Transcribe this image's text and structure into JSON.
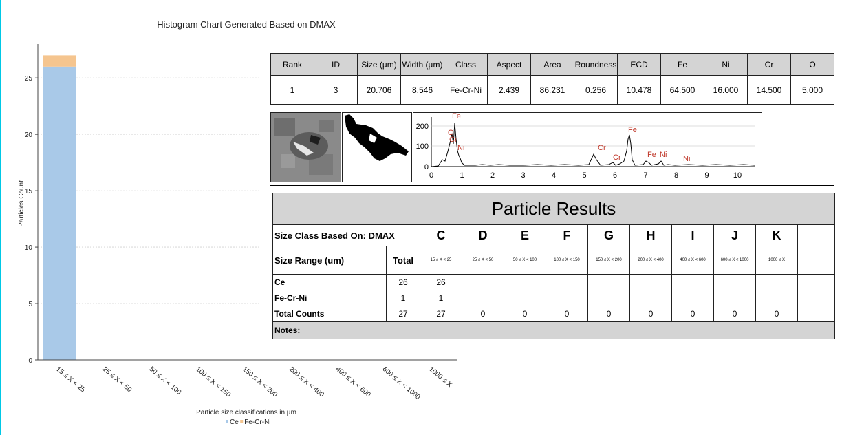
{
  "chart_data": {
    "type": "bar",
    "stacked": true,
    "title": "Histogram Chart Generated Based on DMAX",
    "xlabel": "Particle size classifications in µm",
    "ylabel": "Particles Count",
    "categories": [
      "15 ≤ X < 25",
      "25 ≤ X < 50",
      "50 ≤ X < 100",
      "100 ≤ X < 150",
      "150 ≤ X < 200",
      "200 ≤ X < 400",
      "400 ≤ X < 600",
      "600 ≤ X < 1000",
      "1000 ≤ X"
    ],
    "series": [
      {
        "name": "Ce",
        "values": [
          26,
          0,
          0,
          0,
          0,
          0,
          0,
          0,
          0
        ],
        "color": "#a9c9e8"
      },
      {
        "name": "Fe-Cr-Ni",
        "values": [
          1,
          0,
          0,
          0,
          0,
          0,
          0,
          0,
          0
        ],
        "color": "#f5c58f"
      }
    ],
    "ylim": [
      0,
      28
    ],
    "yticks": [
      "0",
      "5",
      "10",
      "15",
      "20",
      "25"
    ],
    "grid": true,
    "legend": "bottom-center"
  },
  "particle_table": {
    "headers": [
      "Rank",
      "ID",
      "Size (µm)",
      "Width (µm)",
      "Class",
      "Aspect",
      "Area",
      "Roundness",
      "ECD",
      "Fe",
      "Ni",
      "Cr",
      "O"
    ],
    "row": [
      "1",
      "3",
      "20.706",
      "8.546",
      "Fe-Cr-Ni",
      "2.439",
      "86.231",
      "0.256",
      "10.478",
      "64.500",
      "16.000",
      "14.500",
      "5.000"
    ]
  },
  "spectrum": {
    "yticks": [
      "0",
      "100",
      "200"
    ],
    "xticks": [
      "0",
      "1",
      "2",
      "3",
      "4",
      "5",
      "6",
      "7",
      "8",
      "9",
      "10"
    ],
    "peak_labels": [
      "O",
      "Cr",
      "Fe",
      "Ni",
      "Cr",
      "Cr",
      "Fe",
      "Fe",
      "Ni",
      "Ni"
    ]
  },
  "results": {
    "title": "Particle Results",
    "size_class_label": "Size Class Based On: DMAX",
    "size_range_label": "Size Range (um)",
    "total_label": "Total",
    "classes": [
      {
        "letter": "C",
        "range": "15 ≤ X < 25"
      },
      {
        "letter": "D",
        "range": "25 ≤ X < 50"
      },
      {
        "letter": "E",
        "range": "50 ≤ X < 100"
      },
      {
        "letter": "F",
        "range": "100 ≤ X < 150"
      },
      {
        "letter": "G",
        "range": "150 ≤ X < 200"
      },
      {
        "letter": "H",
        "range": "200 ≤ X < 400"
      },
      {
        "letter": "I",
        "range": "400 ≤ X < 600"
      },
      {
        "letter": "J",
        "range": "600 ≤ X < 1000"
      },
      {
        "letter": "K",
        "range": "1000 ≤ X"
      }
    ],
    "rows": [
      {
        "name": "Ce",
        "total": "26",
        "counts": [
          "26",
          "",
          "",
          "",
          "",
          "",
          "",
          "",
          ""
        ]
      },
      {
        "name": "Fe-Cr-Ni",
        "total": "1",
        "counts": [
          "1",
          "",
          "",
          "",
          "",
          "",
          "",
          "",
          ""
        ]
      },
      {
        "name": "Total Counts",
        "total": "27",
        "counts": [
          "27",
          "0",
          "0",
          "0",
          "0",
          "0",
          "0",
          "0",
          "0"
        ]
      }
    ],
    "notes_label": "Notes:"
  }
}
